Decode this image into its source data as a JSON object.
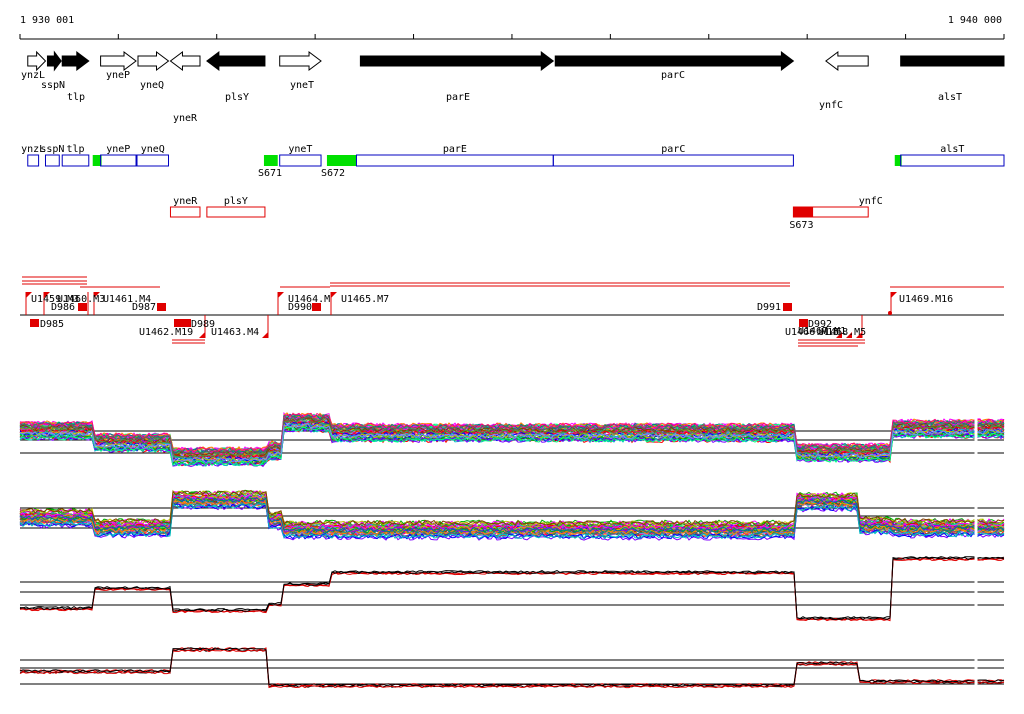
{
  "ruler": {
    "start_label": "1 930 001",
    "end_label": "1 940 000",
    "start_bp": 1930001,
    "end_bp": 1940000
  },
  "genes": [
    {
      "name": "ynzL",
      "strand": "+",
      "fill": "white",
      "start_bp": 1930080,
      "end_bp": 1930260
    },
    {
      "name": "sspN",
      "strand": "+",
      "fill": "black",
      "start_bp": 1930280,
      "end_bp": 1930420
    },
    {
      "name": "tlp",
      "strand": "+",
      "fill": "black",
      "start_bp": 1930430,
      "end_bp": 1930700
    },
    {
      "name": "yneP",
      "strand": "+",
      "fill": "white",
      "start_bp": 1930820,
      "end_bp": 1931180
    },
    {
      "name": "yneQ",
      "strand": "+",
      "fill": "white",
      "start_bp": 1931200,
      "end_bp": 1931510
    },
    {
      "name": "yneR",
      "strand": "-",
      "fill": "white",
      "start_bp": 1931530,
      "end_bp": 1931830
    },
    {
      "name": "plsY",
      "strand": "-",
      "fill": "black",
      "start_bp": 1931900,
      "end_bp": 1932490
    },
    {
      "name": "yneT",
      "strand": "+",
      "fill": "white",
      "start_bp": 1932640,
      "end_bp": 1933060
    },
    {
      "name": "parE",
      "strand": "+",
      "fill": "black",
      "start_bp": 1933460,
      "end_bp": 1935420
    },
    {
      "name": "parC",
      "strand": "+",
      "fill": "black",
      "start_bp": 1935440,
      "end_bp": 1937860
    },
    {
      "name": "ynfC",
      "strand": "-",
      "fill": "white",
      "start_bp": 1938190,
      "end_bp": 1938620
    },
    {
      "name": "alsT",
      "strand": "+",
      "fill": "black",
      "start_bp": 1938950,
      "end_bp": 1940000
    }
  ],
  "plus_regions": [
    {
      "name": "ynzL",
      "start_bp": 1930080,
      "end_bp": 1930190
    },
    {
      "name": "sspN",
      "start_bp": 1930260,
      "end_bp": 1930400
    },
    {
      "name": "tlp",
      "start_bp": 1930430,
      "end_bp": 1930700
    },
    {
      "name": "yneP",
      "start_bp": 1930820,
      "end_bp": 1931180
    },
    {
      "name": "yneQ",
      "start_bp": 1931190,
      "end_bp": 1931510
    },
    {
      "name": "yneT",
      "start_bp": 1932640,
      "end_bp": 1933060
    },
    {
      "name": "parE",
      "start_bp": 1933420,
      "end_bp": 1935420
    },
    {
      "name": "parC",
      "start_bp": 1935420,
      "end_bp": 1937860
    },
    {
      "name": "alsT",
      "start_bp": 1938950,
      "end_bp": 1940000
    }
  ],
  "plus_sites": [
    {
      "label": "",
      "start_bp": 1930740,
      "end_bp": 1930830
    },
    {
      "label": "S671",
      "start_bp": 1932480,
      "end_bp": 1932620
    },
    {
      "label": "S672",
      "start_bp": 1933120,
      "end_bp": 1933420
    },
    {
      "label": "",
      "start_bp": 1938890,
      "end_bp": 1938960
    }
  ],
  "minus_regions": [
    {
      "name": "yneR",
      "start_bp": 1931530,
      "end_bp": 1931830
    },
    {
      "name": "plsY",
      "start_bp": 1931900,
      "end_bp": 1932490
    },
    {
      "name": "ynfC",
      "start_bp": 1937860,
      "end_bp": 1938620
    }
  ],
  "minus_sites": [
    {
      "label": "S673",
      "start_bp": 1937860,
      "end_bp": 1938060
    }
  ],
  "tu_labels_top": [
    "U1459.M3",
    "D986",
    "U1460.M3",
    "U1461.M4",
    "D987",
    "U1464.M",
    "U1465.M7",
    "D990",
    "D991",
    "U1469.M16"
  ],
  "tu_labels_bottom": [
    "D985",
    "U1462.M19",
    "D989",
    "U1463.M4",
    "D992",
    "U1466.M15",
    "U1467.M1",
    "U1468.M5"
  ]
}
